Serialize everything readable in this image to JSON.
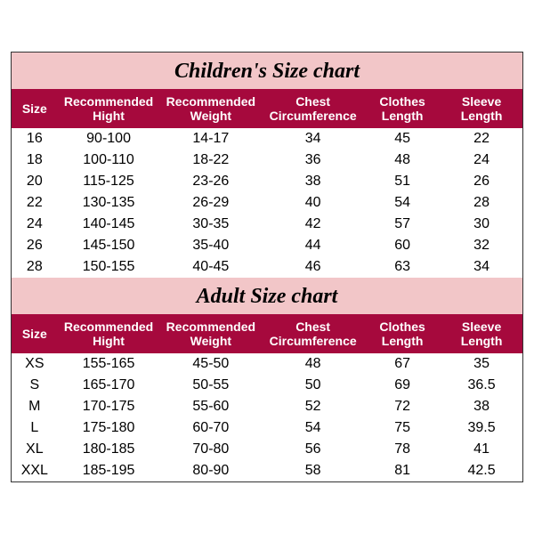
{
  "colors": {
    "card_bg": "#f2c6c8",
    "header_bg": "#a6093d",
    "header_text": "#ffffff",
    "body_bg": "#ffffff",
    "text": "#000000"
  },
  "typography": {
    "title_fontsize": 24,
    "header_fontsize": 14,
    "cell_fontsize": 16,
    "title_family": "Georgia serif italic bold"
  },
  "columns": [
    {
      "key": "size",
      "label_line1": "Size",
      "label_line2": ""
    },
    {
      "key": "hight",
      "label_line1": "Recommended",
      "label_line2": "Hight"
    },
    {
      "key": "weight",
      "label_line1": "Recommended",
      "label_line2": "Weight"
    },
    {
      "key": "chest",
      "label_line1": "Chest",
      "label_line2": "Circumference"
    },
    {
      "key": "len",
      "label_line1": "Clothes",
      "label_line2": "Length"
    },
    {
      "key": "sleeve",
      "label_line1": "Sleeve",
      "label_line2": "Length"
    }
  ],
  "tables": [
    {
      "title": "Children's Size chart",
      "rows": [
        [
          "16",
          "90-100",
          "14-17",
          "34",
          "45",
          "22"
        ],
        [
          "18",
          "100-110",
          "18-22",
          "36",
          "48",
          "24"
        ],
        [
          "20",
          "115-125",
          "23-26",
          "38",
          "51",
          "26"
        ],
        [
          "22",
          "130-135",
          "26-29",
          "40",
          "54",
          "28"
        ],
        [
          "24",
          "140-145",
          "30-35",
          "42",
          "57",
          "30"
        ],
        [
          "26",
          "145-150",
          "35-40",
          "44",
          "60",
          "32"
        ],
        [
          "28",
          "150-155",
          "40-45",
          "46",
          "63",
          "34"
        ]
      ]
    },
    {
      "title": "Adult Size chart",
      "rows": [
        [
          "XS",
          "155-165",
          "45-50",
          "48",
          "67",
          "35"
        ],
        [
          "S",
          "165-170",
          "50-55",
          "50",
          "69",
          "36.5"
        ],
        [
          "M",
          "170-175",
          "55-60",
          "52",
          "72",
          "38"
        ],
        [
          "L",
          "175-180",
          "60-70",
          "54",
          "75",
          "39.5"
        ],
        [
          "XL",
          "180-185",
          "70-80",
          "56",
          "78",
          "41"
        ],
        [
          "XXL",
          "185-195",
          "80-90",
          "58",
          "81",
          "42.5"
        ]
      ]
    }
  ]
}
